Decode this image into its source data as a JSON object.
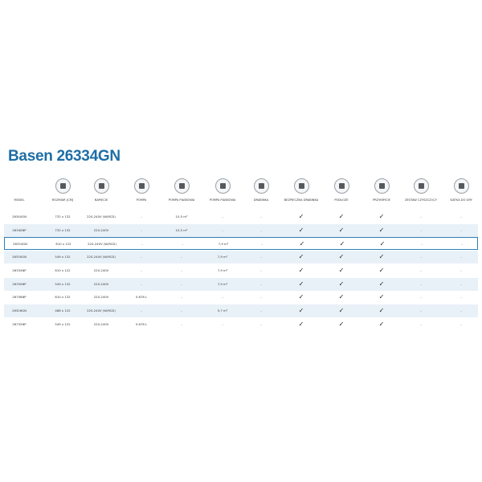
{
  "title": "Basen 26334GN",
  "table": {
    "header": [
      "MODEL",
      "ROZMIAR [CM]",
      "NAPIĘCIE",
      "POMPA",
      "POMPA PIASKOWA",
      "POMPA PIASKOWA",
      "DRABINKA",
      "BEZPIECZNA DRABINKA",
      "PODŁOŻE",
      "PRZYKRYCIE",
      "ZESTAW CZYSZCZĄCY",
      "SIATKA DO GRY"
    ],
    "rows": [
      [
        "26340GN",
        "732 x 132",
        "220-240V (W/RCD)",
        "-",
        "10,5 m³",
        "-",
        "-",
        "✓",
        "✓",
        "✓",
        "-",
        "-"
      ],
      [
        "26340NP",
        "732 x 132",
        "220-240V",
        "-",
        "10,5 m³",
        "-",
        "-",
        "✓",
        "✓",
        "✓",
        "-",
        "-"
      ],
      [
        "26334GN",
        "610 x 122",
        "220-240V (W/RCD)",
        "-",
        "-",
        "7,9 m³",
        "-",
        "✓",
        "✓",
        "✓",
        "-",
        "-"
      ],
      [
        "26330GN",
        "549 x 132",
        "220-240V (W/RCD)",
        "-",
        "-",
        "7,9 m³",
        "-",
        "✓",
        "✓",
        "✓",
        "-",
        "-"
      ],
      [
        "26334NP",
        "610 x 122",
        "220-240V",
        "-",
        "-",
        "7,9 m³",
        "-",
        "✓",
        "✓",
        "✓",
        "-",
        "-"
      ],
      [
        "26330NP",
        "549 x 132",
        "220-240V",
        "-",
        "-",
        "7,9 m³",
        "-",
        "✓",
        "✓",
        "✓",
        "-",
        "-"
      ],
      [
        "26756NP",
        "610 x 132",
        "220-240V",
        "5.678 L",
        "-",
        "-",
        "-",
        "✓",
        "✓",
        "✓",
        "-",
        "-"
      ],
      [
        "26326GN",
        "488 x 122",
        "220-240V (W/RCD)",
        "-",
        "-",
        "5,7 m³",
        "-",
        "✓",
        "✓",
        "✓",
        "-",
        "-"
      ],
      [
        "26732NP",
        "549 x 122",
        "220-240V",
        "5.678 L",
        "-",
        "-",
        "-",
        "✓",
        "✓",
        "✓",
        "-",
        "-"
      ]
    ]
  }
}
